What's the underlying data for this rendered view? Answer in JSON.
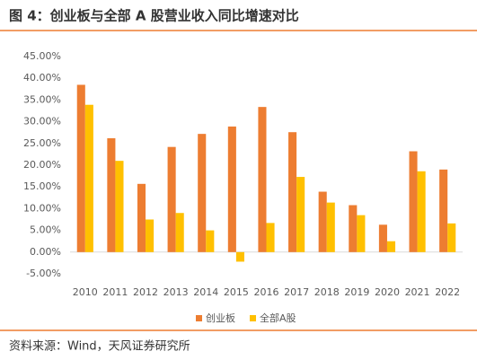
{
  "chart_data": {
    "type": "bar",
    "title": "图 4：创业板与全部 A 股营业收入同比增速对比",
    "source": "资料来源：Wind，天风证券研究所",
    "categories": [
      "2010",
      "2011",
      "2012",
      "2013",
      "2014",
      "2015",
      "2016",
      "2017",
      "2018",
      "2019",
      "2020",
      "2021",
      "2022"
    ],
    "series": [
      {
        "name": "创业板",
        "color": "#ED7D31",
        "values": [
          38.5,
          26.2,
          15.7,
          24.2,
          27.2,
          28.9,
          33.4,
          27.6,
          13.9,
          10.8,
          6.3,
          23.2,
          19.0
        ]
      },
      {
        "name": "全部A股",
        "color": "#FFC000",
        "values": [
          33.9,
          21.0,
          7.5,
          9.0,
          5.0,
          -2.2,
          6.7,
          17.3,
          11.4,
          8.5,
          2.5,
          18.6,
          6.6
        ]
      }
    ],
    "ylim": [
      -5,
      45
    ],
    "yticks": [
      {
        "value": -5,
        "label": "-5.00%"
      },
      {
        "value": 0,
        "label": "0.00%"
      },
      {
        "value": 5,
        "label": "5.00%"
      },
      {
        "value": 10,
        "label": "10.00%"
      },
      {
        "value": 15,
        "label": "15.00%"
      },
      {
        "value": 20,
        "label": "20.00%"
      },
      {
        "value": 25,
        "label": "25.00%"
      },
      {
        "value": 30,
        "label": "30.00%"
      },
      {
        "value": 35,
        "label": "35.00%"
      },
      {
        "value": 40,
        "label": "40.00%"
      },
      {
        "value": 45,
        "label": "45.00%"
      }
    ],
    "grid": false,
    "legend": "bottom"
  }
}
